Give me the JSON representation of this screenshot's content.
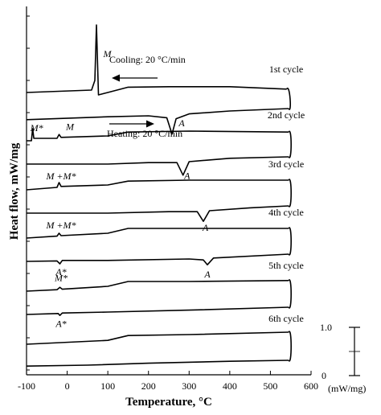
{
  "chart_data": {
    "type": "line",
    "xlabel": "Temperature, °C",
    "ylabel": "Heat flow, mW/mg",
    "xlim": [
      -100,
      600
    ],
    "x_ticks": [
      -100,
      0,
      100,
      200,
      300,
      400,
      500,
      600
    ],
    "grid": false,
    "scale_bar": {
      "unit_label": "(mW/mg)",
      "ticks": [
        "1.0",
        "0"
      ],
      "span_mW_per_mg": 1.0
    },
    "annotations": {
      "cooling": "Cooling: 20 °C/min",
      "heating": "Heating: 20 °C/min"
    },
    "cycles": [
      {
        "name": "1st cycle",
        "peak_labels": [
          {
            "text": "M",
            "x": 75,
            "branch": "cooling"
          },
          {
            "text": "A",
            "x": 262,
            "branch": "heating"
          }
        ],
        "cooling": [
          [
            -100,
            0.05
          ],
          [
            60,
            0.1
          ],
          [
            68,
            0.3
          ],
          [
            72,
            1.45
          ],
          [
            77,
            0.0
          ],
          [
            100,
            0.05
          ],
          [
            150,
            0.16
          ],
          [
            250,
            0.17
          ],
          [
            400,
            0.17
          ],
          [
            540,
            0.12
          ]
        ],
        "heating": [
          [
            -100,
            -0.18
          ],
          [
            100,
            -0.12
          ],
          [
            200,
            -0.1
          ],
          [
            245,
            -0.14
          ],
          [
            258,
            -0.48
          ],
          [
            268,
            -0.16
          ],
          [
            300,
            -0.06
          ],
          [
            400,
            0.0
          ],
          [
            545,
            0.05
          ]
        ]
      },
      {
        "name": "2nd cycle",
        "peak_labels": [
          {
            "text": "M*",
            "x": -75,
            "branch": "cooling"
          },
          {
            "text": "M",
            "x": -5,
            "branch": "cooling"
          },
          {
            "text": "A",
            "x": 295,
            "branch": "heating"
          }
        ],
        "cooling": [
          [
            -100,
            0.0
          ],
          [
            -88,
            0.0
          ],
          [
            -85,
            0.25
          ],
          [
            -82,
            0.05
          ],
          [
            -25,
            0.05
          ],
          [
            -20,
            0.13
          ],
          [
            -15,
            0.07
          ],
          [
            100,
            0.1
          ],
          [
            150,
            0.18
          ],
          [
            300,
            0.2
          ],
          [
            545,
            0.18
          ]
        ],
        "heating": [
          [
            -100,
            -0.15
          ],
          [
            100,
            -0.15
          ],
          [
            200,
            -0.12
          ],
          [
            270,
            -0.12
          ],
          [
            285,
            -0.38
          ],
          [
            300,
            -0.1
          ],
          [
            400,
            -0.03
          ],
          [
            545,
            0.0
          ]
        ]
      },
      {
        "name": "3rd cycle",
        "peak_labels": [
          {
            "text": "M +M*",
            "x": -15,
            "branch": "cooling"
          },
          {
            "text": "A",
            "x": 340,
            "branch": "heating"
          }
        ],
        "cooling": [
          [
            -100,
            0.0
          ],
          [
            -25,
            0.05
          ],
          [
            -20,
            0.15
          ],
          [
            -15,
            0.07
          ],
          [
            100,
            0.1
          ],
          [
            150,
            0.18
          ],
          [
            300,
            0.2
          ],
          [
            545,
            0.2
          ]
        ],
        "heating": [
          [
            -100,
            -0.15
          ],
          [
            100,
            -0.15
          ],
          [
            250,
            -0.12
          ],
          [
            320,
            -0.12
          ],
          [
            335,
            -0.32
          ],
          [
            350,
            -0.1
          ],
          [
            450,
            -0.04
          ],
          [
            545,
            0.0
          ]
        ]
      },
      {
        "name": "4th cycle",
        "peak_labels": [
          {
            "text": "M +M*",
            "x": -15,
            "branch": "cooling"
          },
          {
            "text": "A*",
            "x": -15,
            "branch": "heating"
          },
          {
            "text": "A",
            "x": 345,
            "branch": "heating"
          }
        ],
        "cooling": [
          [
            -100,
            0.0
          ],
          [
            -25,
            0.04
          ],
          [
            -20,
            0.1
          ],
          [
            -15,
            0.05
          ],
          [
            100,
            0.1
          ],
          [
            150,
            0.2
          ],
          [
            300,
            0.2
          ],
          [
            545,
            0.2
          ]
        ],
        "heating": [
          [
            -100,
            -0.15
          ],
          [
            -25,
            -0.14
          ],
          [
            -18,
            -0.2
          ],
          [
            -12,
            -0.13
          ],
          [
            100,
            -0.13
          ],
          [
            300,
            -0.1
          ],
          [
            335,
            -0.12
          ],
          [
            345,
            -0.22
          ],
          [
            360,
            -0.08
          ],
          [
            545,
            0.0
          ]
        ]
      },
      {
        "name": "5th cycle",
        "peak_labels": [
          {
            "text": "M*",
            "x": -15,
            "branch": "cooling"
          },
          {
            "text": "A*",
            "x": -15,
            "branch": "heating"
          }
        ],
        "cooling": [
          [
            -100,
            0.0
          ],
          [
            -25,
            0.03
          ],
          [
            -18,
            0.08
          ],
          [
            -12,
            0.04
          ],
          [
            100,
            0.1
          ],
          [
            150,
            0.2
          ],
          [
            300,
            0.2
          ],
          [
            545,
            0.22
          ]
        ],
        "heating": [
          [
            -100,
            -0.15
          ],
          [
            -22,
            -0.13
          ],
          [
            -18,
            -0.17
          ],
          [
            -12,
            -0.12
          ],
          [
            100,
            -0.1
          ],
          [
            300,
            -0.06
          ],
          [
            545,
            0.0
          ]
        ]
      },
      {
        "name": "6th cycle",
        "peak_labels": [],
        "cooling": [
          [
            -100,
            0.0
          ],
          [
            100,
            0.08
          ],
          [
            150,
            0.18
          ],
          [
            300,
            0.2
          ],
          [
            545,
            0.25
          ]
        ],
        "heating": [
          [
            -100,
            -0.12
          ],
          [
            50,
            -0.1
          ],
          [
            200,
            -0.06
          ],
          [
            400,
            -0.02
          ],
          [
            545,
            0.0
          ]
        ]
      }
    ]
  }
}
